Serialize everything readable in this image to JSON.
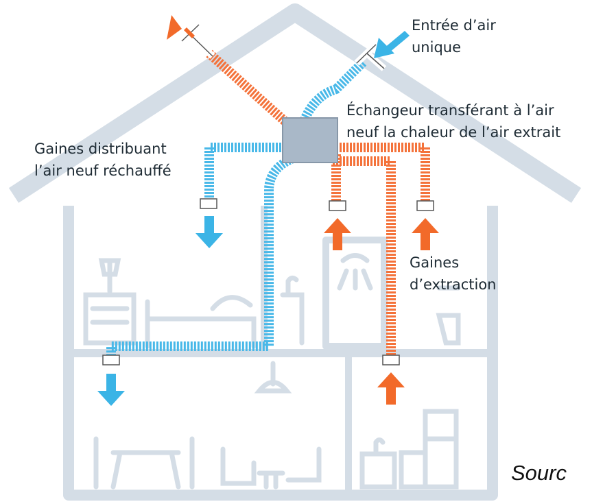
{
  "labels": {
    "intake": [
      "Entrée d’air",
      "unique"
    ],
    "exchanger": [
      "Échangeur transférant à l’air",
      "neuf la chaleur de l’air extrait"
    ],
    "distribution": [
      "Gaines distribuant",
      "l’air neuf réchauffé"
    ],
    "extraction": [
      "Gaines",
      "d’extraction"
    ],
    "source": "Sourc"
  }
}
